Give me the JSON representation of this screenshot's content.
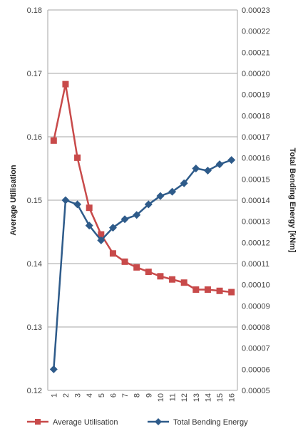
{
  "chart_data": {
    "type": "line",
    "categories": [
      "1",
      "2",
      "3",
      "4",
      "5",
      "6",
      "7",
      "8",
      "9",
      "10",
      "11",
      "12",
      "13",
      "14",
      "15",
      "16"
    ],
    "y_left": {
      "label": "Average Utilisation",
      "ylim": [
        0.12,
        0.18
      ],
      "ticks": [
        "0.12",
        "0.13",
        "0.14",
        "0.15",
        "0.16",
        "0.17",
        "0.18"
      ]
    },
    "y_right": {
      "label": "Total Bending Energy [kNm]",
      "ylim": [
        5e-05,
        0.00023
      ],
      "ticks": [
        "0.00005",
        "0.00006",
        "0.00007",
        "0.00008",
        "0.00009",
        "0.00010",
        "0.00011",
        "0.00012",
        "0.00013",
        "0.00014",
        "0.00015",
        "0.00016",
        "0.00017",
        "0.00018",
        "0.00019",
        "0.00020",
        "0.00021",
        "0.00022",
        "0.00023"
      ]
    },
    "grid": true,
    "legend_position": "bottom",
    "series": [
      {
        "name": "Average Utilisation",
        "axis": "left",
        "color": "#c84a4a",
        "marker": "square",
        "values": [
          0.1594,
          0.1683,
          0.1567,
          0.1488,
          0.1446,
          0.1416,
          0.1403,
          0.1394,
          0.1387,
          0.138,
          0.1375,
          0.137,
          0.1359,
          0.1359,
          0.1357,
          0.1355
        ]
      },
      {
        "name": "Total Bending Energy",
        "axis": "right",
        "color": "#2e5b8a",
        "marker": "diamond",
        "values": [
          6e-05,
          0.00014,
          0.000138,
          0.000128,
          0.000121,
          0.000127,
          0.000131,
          0.000133,
          0.000138,
          0.000142,
          0.000144,
          0.000148,
          0.000155,
          0.000154,
          0.000157,
          0.000159
        ]
      }
    ]
  }
}
